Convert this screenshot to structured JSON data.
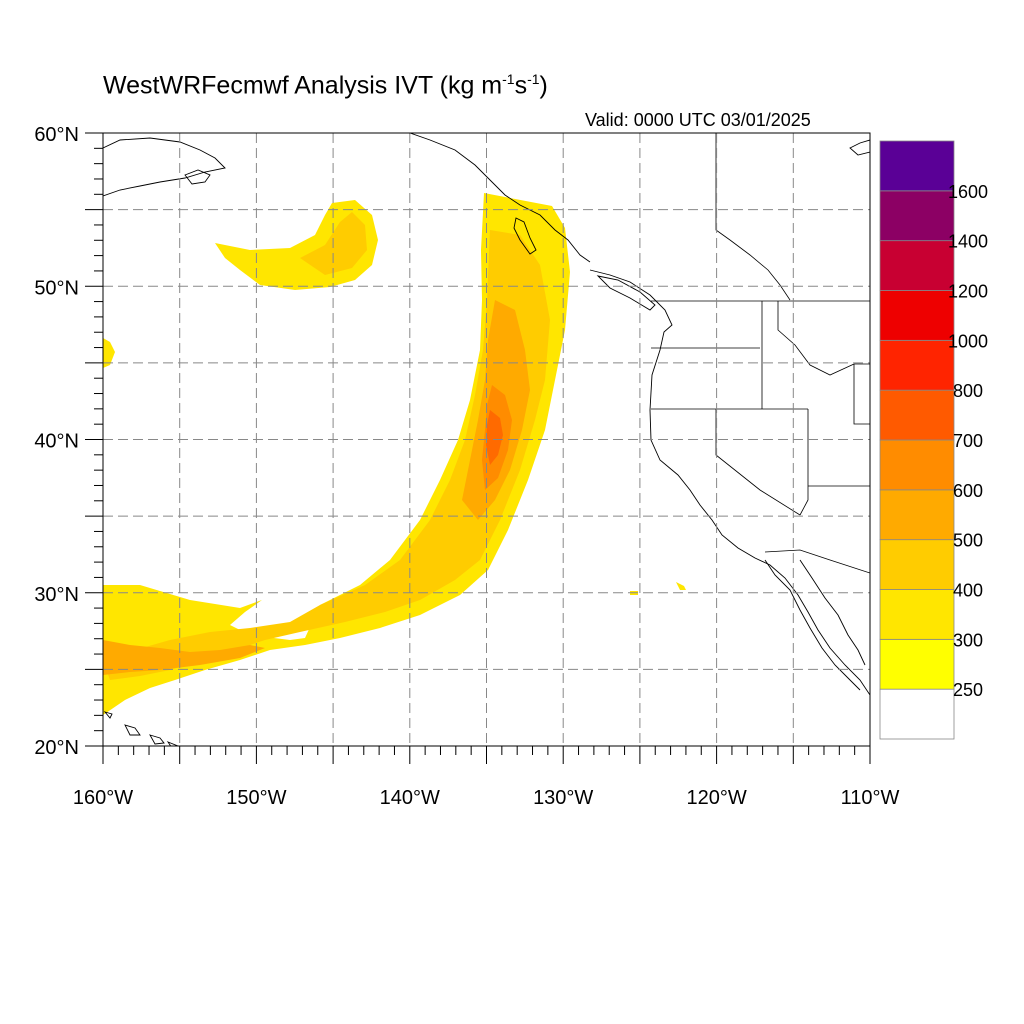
{
  "title": {
    "prefix": "WestWRFecmwf Analysis IVT (kg m",
    "sup1": "-1",
    "mid": "s",
    "sup2": "-1",
    "suffix": ")"
  },
  "valid": "Valid: 0000 UTC 03/01/2025",
  "axes": {
    "lat_ticks": [
      {
        "value": 60,
        "label": "60°N"
      },
      {
        "value": 50,
        "label": "50°N"
      },
      {
        "value": 40,
        "label": "40°N"
      },
      {
        "value": 30,
        "label": "30°N"
      },
      {
        "value": 20,
        "label": "20°N"
      }
    ],
    "lon_ticks": [
      {
        "value": -160,
        "label": "160°W"
      },
      {
        "value": -150,
        "label": "150°W"
      },
      {
        "value": -140,
        "label": "140°W"
      },
      {
        "value": -130,
        "label": "130°W"
      },
      {
        "value": -120,
        "label": "120°W"
      },
      {
        "value": -110,
        "label": "110°W"
      }
    ],
    "lat_range": [
      20,
      60
    ],
    "lon_range": [
      -160,
      -110
    ],
    "grid_lats": [
      25,
      30,
      35,
      40,
      45,
      50,
      55
    ],
    "grid_lons": [
      -155,
      -150,
      -145,
      -140,
      -135,
      -130,
      -125,
      -120,
      -115
    ]
  },
  "colorbar": {
    "labels": [
      "250",
      "300",
      "400",
      "500",
      "600",
      "700",
      "800",
      "1000",
      "1200",
      "1400",
      "1600"
    ],
    "colors": [
      "#ffffff",
      "#ffff00",
      "#ffe600",
      "#ffcc00",
      "#ffaa00",
      "#ff8c00",
      "#ff5a00",
      "#ff2400",
      "#ee0000",
      "#c80032",
      "#8c0064",
      "#5a0096"
    ]
  }
}
